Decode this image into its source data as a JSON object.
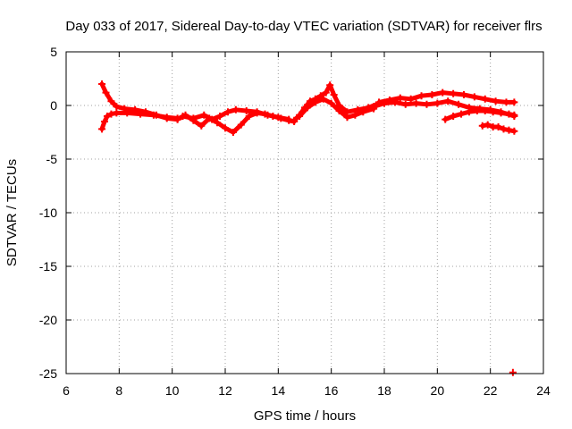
{
  "chart_data": {
    "type": "scatter",
    "title": "Day 033 of 2017, Sidereal Day-to-day VTEC variation (SDTVAR) for receiver flrs",
    "xlabel": "GPS time / hours",
    "ylabel": "SDTVAR / TECUs",
    "xlim": [
      6,
      24
    ],
    "ylim": [
      -25,
      5
    ],
    "xticks": [
      6,
      8,
      10,
      12,
      14,
      16,
      18,
      20,
      22,
      24
    ],
    "yticks": [
      -25,
      -20,
      -15,
      -10,
      -5,
      0,
      5
    ],
    "grid": true,
    "legend": "none",
    "series": [
      {
        "name": "track-upper-start",
        "color": "#ff0000",
        "marker": "plus",
        "x": [
          7.35,
          7.5,
          7.7,
          7.9,
          8.2,
          8.6,
          9.0,
          9.4,
          9.8,
          10.2
        ],
        "y": [
          2.0,
          1.2,
          0.4,
          -0.1,
          -0.3,
          -0.4,
          -0.6,
          -0.9,
          -1.2,
          -1.3
        ]
      },
      {
        "name": "track-lower-start",
        "color": "#ff0000",
        "marker": "plus",
        "x": [
          7.35,
          7.45,
          7.55,
          7.7,
          7.9,
          8.3,
          8.8,
          9.3,
          9.8,
          10.2
        ],
        "y": [
          -2.2,
          -1.5,
          -1.0,
          -0.8,
          -0.7,
          -0.7,
          -0.8,
          -0.9,
          -1.1,
          -1.2
        ]
      },
      {
        "name": "track-mid-block",
        "color": "#ff0000",
        "marker": "plus",
        "x": [
          10.2,
          10.5,
          10.8,
          11.1,
          11.4,
          11.7,
          12.0,
          12.3,
          12.6,
          12.9,
          13.2,
          13.5,
          13.8,
          14.1,
          14.4,
          14.6
        ],
        "y": [
          -1.3,
          -0.9,
          -1.4,
          -1.9,
          -1.2,
          -1.6,
          -2.1,
          -2.5,
          -1.8,
          -1.0,
          -0.7,
          -0.8,
          -1.0,
          -1.2,
          -1.4,
          -1.5
        ]
      },
      {
        "name": "track-mid-alt",
        "color": "#ff0000",
        "marker": "plus",
        "x": [
          10.4,
          10.8,
          11.2,
          11.5,
          11.8,
          12.1,
          12.4,
          12.8,
          13.2,
          13.6,
          14.0,
          14.4
        ],
        "y": [
          -1.0,
          -1.2,
          -0.9,
          -1.3,
          -1.0,
          -0.6,
          -0.4,
          -0.5,
          -0.6,
          -0.9,
          -1.1,
          -1.3
        ]
      },
      {
        "name": "track-rise",
        "color": "#ff0000",
        "marker": "plus",
        "x": [
          14.6,
          14.8,
          15.0,
          15.2,
          15.4,
          15.6,
          15.8,
          15.95,
          16.1,
          16.3,
          16.6,
          17.0,
          17.4,
          17.8
        ],
        "y": [
          -1.4,
          -0.9,
          -0.2,
          0.4,
          0.6,
          0.9,
          1.2,
          1.9,
          1.0,
          0.0,
          -0.6,
          -0.4,
          -0.2,
          0.2
        ]
      },
      {
        "name": "track-rise-low",
        "color": "#ff0000",
        "marker": "plus",
        "x": [
          14.8,
          15.1,
          15.4,
          15.7,
          16.0,
          16.3,
          16.6,
          16.9,
          17.2,
          17.6
        ],
        "y": [
          -1.0,
          -0.2,
          0.3,
          0.6,
          0.2,
          -0.5,
          -1.1,
          -0.9,
          -0.6,
          -0.3
        ]
      },
      {
        "name": "track-plateau",
        "color": "#ff0000",
        "marker": "plus",
        "x": [
          17.8,
          18.2,
          18.6,
          19.0,
          19.4,
          19.8,
          20.2,
          20.6,
          21.0,
          21.4,
          21.8,
          22.2,
          22.6,
          22.9
        ],
        "y": [
          0.3,
          0.5,
          0.7,
          0.6,
          0.9,
          1.0,
          1.2,
          1.1,
          1.0,
          0.8,
          0.6,
          0.4,
          0.3,
          0.3
        ]
      },
      {
        "name": "track-plateau-low",
        "color": "#ff0000",
        "marker": "plus",
        "x": [
          17.6,
          18.0,
          18.4,
          18.8,
          19.2,
          19.6,
          20.0,
          20.4,
          20.8,
          21.2,
          21.6,
          22.0,
          22.4,
          22.9
        ],
        "y": [
          -0.1,
          0.2,
          0.3,
          0.1,
          0.2,
          0.1,
          0.2,
          0.4,
          0.1,
          -0.2,
          -0.3,
          -0.4,
          -0.6,
          -1.0
        ]
      },
      {
        "name": "track-late-a",
        "color": "#ff0000",
        "marker": "plus",
        "x": [
          20.3,
          20.6,
          20.9,
          21.2,
          21.5,
          21.8,
          22.1,
          22.4,
          22.7,
          22.9
        ],
        "y": [
          -1.3,
          -1.0,
          -0.8,
          -0.6,
          -0.5,
          -0.5,
          -0.6,
          -0.7,
          -0.8,
          -0.9
        ]
      },
      {
        "name": "track-late-b",
        "color": "#ff0000",
        "marker": "plus",
        "x": [
          21.7,
          21.9,
          22.1,
          22.3,
          22.5,
          22.7,
          22.9
        ],
        "y": [
          -1.9,
          -1.8,
          -2.0,
          -2.0,
          -2.2,
          -2.3,
          -2.4
        ]
      },
      {
        "name": "outlier",
        "color": "#ff0000",
        "marker": "plus",
        "x": [
          22.85
        ],
        "y": [
          -24.9
        ]
      }
    ]
  }
}
